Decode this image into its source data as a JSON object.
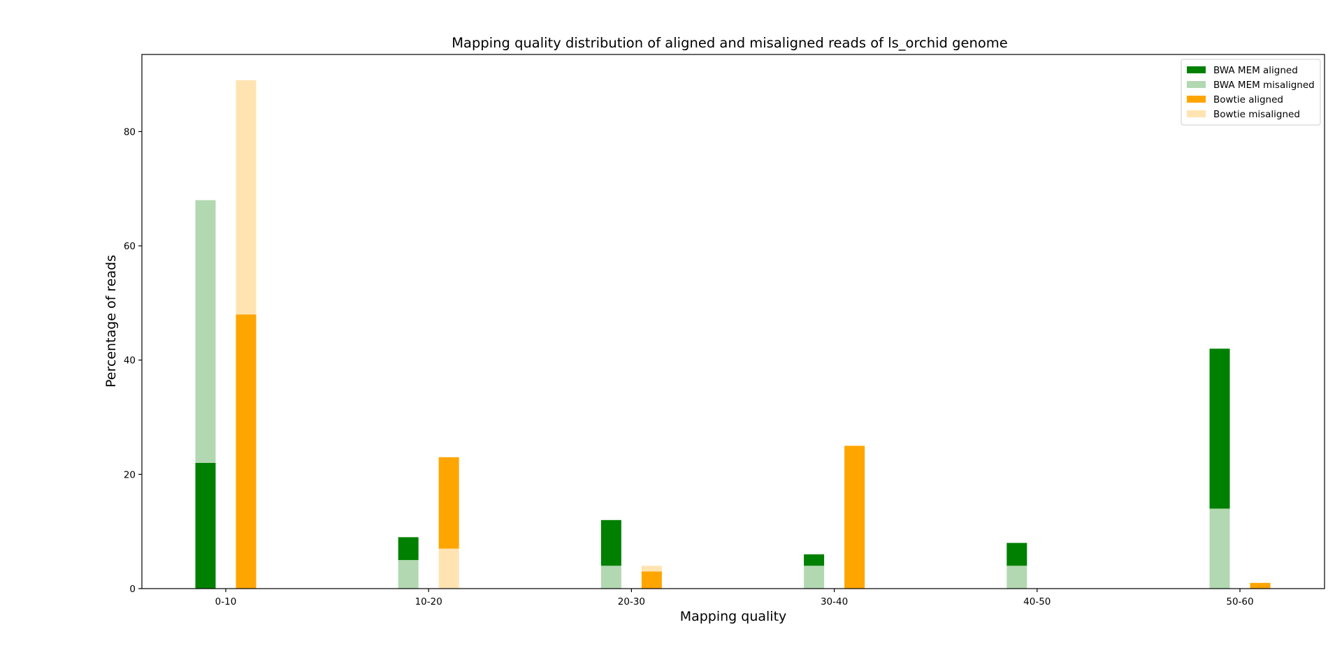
{
  "chart_data": {
    "type": "bar",
    "title": "Mapping quality distribution of aligned and misaligned reads of ls_orchid genome",
    "xlabel": "Mapping quality",
    "ylabel": "Percentage of reads",
    "categories": [
      "0-10",
      "10-20",
      "20-30",
      "30-40",
      "40-50",
      "50-60"
    ],
    "ylim": [
      0,
      93.5
    ],
    "yticks": [
      0,
      20,
      40,
      60,
      80
    ],
    "grid": false,
    "legend_position": "top-right",
    "bar_groups": [
      {
        "group": "BWA MEM",
        "segments": [
          {
            "name": "BWA MEM aligned",
            "color": "#008000",
            "values": [
              22,
              4,
              8,
              2,
              4,
              28
            ]
          },
          {
            "name": "BWA MEM misaligned",
            "color": "#b2d8b2",
            "values": [
              46,
              5,
              4,
              4,
              4,
              14
            ]
          }
        ],
        "stack_order": [
          [
            "BWA MEM aligned",
            "BWA MEM misaligned"
          ],
          [
            "BWA MEM misaligned",
            "BWA MEM aligned"
          ],
          [
            "BWA MEM misaligned",
            "BWA MEM aligned"
          ],
          [
            "BWA MEM misaligned",
            "BWA MEM aligned"
          ],
          [
            "BWA MEM misaligned",
            "BWA MEM aligned"
          ],
          [
            "BWA MEM misaligned",
            "BWA MEM aligned"
          ]
        ]
      },
      {
        "group": "Bowtie",
        "segments": [
          {
            "name": "Bowtie aligned",
            "color": "#ffa500",
            "values": [
              48,
              16,
              3,
              25,
              0,
              1
            ]
          },
          {
            "name": "Bowtie misaligned",
            "color": "#ffe4b2",
            "values": [
              41,
              7,
              1,
              0,
              0,
              0
            ]
          }
        ],
        "stack_order": [
          [
            "Bowtie aligned",
            "Bowtie misaligned"
          ],
          [
            "Bowtie misaligned",
            "Bowtie aligned"
          ],
          [
            "Bowtie aligned",
            "Bowtie misaligned"
          ],
          [
            "Bowtie aligned",
            "Bowtie misaligned"
          ],
          [
            "Bowtie aligned",
            "Bowtie misaligned"
          ],
          [
            "Bowtie aligned",
            "Bowtie misaligned"
          ]
        ]
      }
    ],
    "legend": [
      {
        "label": "BWA MEM aligned",
        "color": "#008000"
      },
      {
        "label": "BWA MEM misaligned",
        "color": "#b2d8b2"
      },
      {
        "label": "Bowtie aligned",
        "color": "#ffa500"
      },
      {
        "label": "Bowtie misaligned",
        "color": "#ffe4b2"
      }
    ]
  }
}
